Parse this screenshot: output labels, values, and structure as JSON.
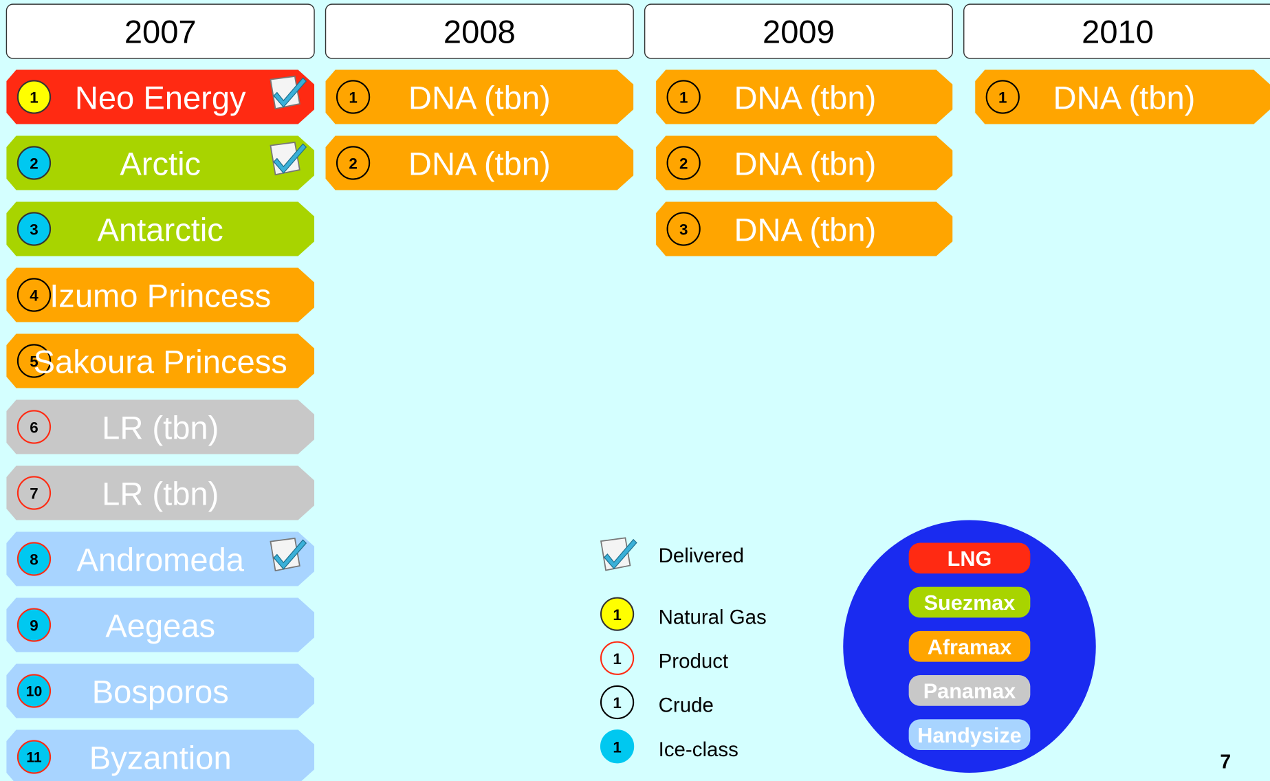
{
  "columns": [
    {
      "year": "2007",
      "offset": 0,
      "items": [
        {
          "number": "1",
          "name": "Neo Energy",
          "color": "#ff2a12",
          "badge_fill": "#ffff00",
          "badge_stroke": "#333333",
          "delivered": true
        },
        {
          "number": "2",
          "name": "Arctic",
          "color": "#a8d400",
          "badge_fill": "#00c8f0",
          "badge_stroke": "#333333",
          "delivered": true
        },
        {
          "number": "3",
          "name": "Antarctic",
          "color": "#a8d400",
          "badge_fill": "#00c8f0",
          "badge_stroke": "#333333"
        },
        {
          "number": "4",
          "name": "Izumo Princess",
          "color": "#ffa500",
          "badge_fill": "none",
          "badge_stroke": "#000000"
        },
        {
          "number": "5",
          "name": "Sakoura Princess",
          "color": "#ffa500",
          "badge_fill": "none",
          "badge_stroke": "#000000"
        },
        {
          "number": "6",
          "name": "LR (tbn)",
          "color": "#c8c8c8",
          "badge_fill": "none",
          "badge_stroke": "#ff2a12"
        },
        {
          "number": "7",
          "name": "LR (tbn)",
          "color": "#c8c8c8",
          "badge_fill": "none",
          "badge_stroke": "#ff2a12"
        },
        {
          "number": "8",
          "name": "Andromeda",
          "color": "#a8d4ff",
          "badge_fill": "#00c8f0",
          "badge_stroke": "#ff2a12",
          "delivered": true
        },
        {
          "number": "9",
          "name": "Aegeas",
          "color": "#a8d4ff",
          "badge_fill": "#00c8f0",
          "badge_stroke": "#ff2a12"
        },
        {
          "number": "10",
          "name": "Bosporos",
          "color": "#a8d4ff",
          "badge_fill": "#00c8f0",
          "badge_stroke": "#ff2a12"
        },
        {
          "number": "11",
          "name": "Byzantion",
          "color": "#a8d4ff",
          "badge_fill": "#00c8f0",
          "badge_stroke": "#ff2a12"
        }
      ]
    },
    {
      "year": "2008",
      "offset": 0,
      "items": [
        {
          "number": "1",
          "name": "DNA (tbn)",
          "color": "#ffa500",
          "badge_fill": "none",
          "badge_stroke": "#000000"
        },
        {
          "number": "2",
          "name": "DNA (tbn)",
          "color": "#ffa500",
          "badge_fill": "none",
          "badge_stroke": "#000000"
        }
      ]
    },
    {
      "year": "2009",
      "offset": 14,
      "items": [
        {
          "number": "1",
          "name": "DNA (tbn)",
          "color": "#ffa500",
          "badge_fill": "none",
          "badge_stroke": "#000000"
        },
        {
          "number": "2",
          "name": "DNA (tbn)",
          "color": "#ffa500",
          "badge_fill": "none",
          "badge_stroke": "#000000"
        },
        {
          "number": "3",
          "name": "DNA (tbn)",
          "color": "#ffa500",
          "badge_fill": "none",
          "badge_stroke": "#000000"
        }
      ]
    },
    {
      "year": "2010",
      "offset": 14,
      "items": [
        {
          "number": "1",
          "name": "DNA (tbn)",
          "color": "#ffa500",
          "badge_fill": "none",
          "badge_stroke": "#000000"
        }
      ]
    }
  ],
  "legend": {
    "delivered": "Delivered",
    "badges": [
      {
        "number": "1",
        "name": "Natural Gas",
        "badge_fill": "#ffff00",
        "badge_stroke": "#333333"
      },
      {
        "number": "1",
        "name": "Product",
        "badge_fill": "none",
        "badge_stroke": "#ff2a12"
      },
      {
        "number": "1",
        "name": "Crude",
        "badge_fill": "none",
        "badge_stroke": "#000000"
      },
      {
        "number": "1",
        "name": "Ice-class",
        "badge_fill": "#00c8f0",
        "badge_stroke": "#00c8f0"
      }
    ]
  },
  "classes": [
    {
      "name": "LNG",
      "color": "#ff2a12"
    },
    {
      "name": "Suezmax",
      "color": "#a8d400"
    },
    {
      "name": "Aframax",
      "color": "#ffa500"
    },
    {
      "name": "Panamax",
      "color": "#c8c8c8"
    },
    {
      "name": "Handysize",
      "color": "#a8d4ff"
    }
  ],
  "page_number": "7"
}
